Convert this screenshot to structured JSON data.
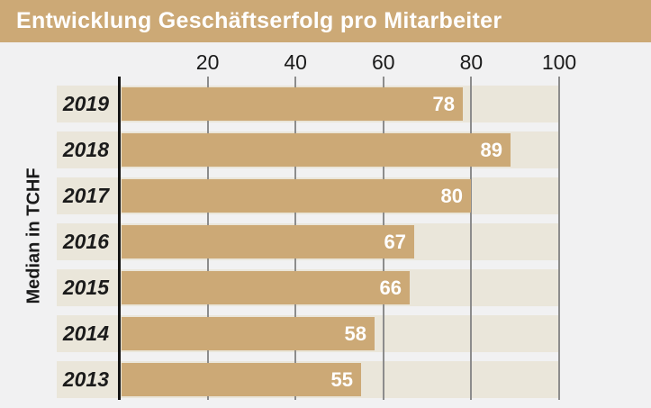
{
  "title_bar": {
    "text": "Entwicklung Geschäftserfolg pro Mitarbeiter"
  },
  "chart_data": {
    "type": "bar",
    "orientation": "horizontal",
    "title": "Entwicklung Geschäftserfolg pro Mitarbeiter",
    "categories": [
      "2019",
      "2018",
      "2017",
      "2016",
      "2015",
      "2014",
      "2013"
    ],
    "values": [
      78,
      89,
      80,
      67,
      66,
      58,
      55
    ],
    "ylabel": "Median in TCHF",
    "xlabel": "",
    "xlim": [
      0,
      100
    ],
    "xticks": [
      20,
      40,
      60,
      80,
      100
    ],
    "grid": "vertical-gridlines-on",
    "legend": "none",
    "value_labels": "inside-bar-end"
  },
  "colors": {
    "accent_tan": "#cca976",
    "track_beige": "#eae6da",
    "background": "#f1f1f2",
    "gridline": "#8c8c8c",
    "axis": "#141414",
    "title_text": "#ffffff",
    "value_text": "#ffffff",
    "label_text": "#1b1b1b"
  }
}
